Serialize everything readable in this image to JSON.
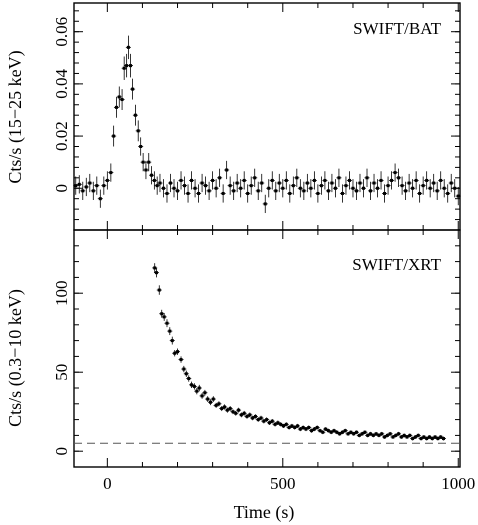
{
  "chart_data": {
    "type": "scatter",
    "xlabel": "Time (s)",
    "x_ticks": [
      "0",
      "500",
      "1000"
    ],
    "xlim": [
      -95,
      1005
    ],
    "panels": [
      {
        "panel_label": "SWIFT/BAT",
        "ylabel": "Cts/s (15−25 keV)",
        "ylim": [
          -0.016,
          0.071
        ],
        "y_ticks": [
          {
            "value": 0,
            "label": "0"
          },
          {
            "value": 0.02,
            "label": "0.02"
          },
          {
            "value": 0.04,
            "label": "0.04"
          },
          {
            "value": 0.06,
            "label": "0.06"
          }
        ],
        "points": [
          [
            -90,
            0.001,
            0.0035
          ],
          [
            -80,
            0.0015,
            0.0035
          ],
          [
            -70,
            -0.001,
            0.0035
          ],
          [
            -60,
            0.0005,
            0.0035
          ],
          [
            -50,
            0.002,
            0.0035
          ],
          [
            -40,
            -0.001,
            0.0035
          ],
          [
            -30,
            0.001,
            0.0035
          ],
          [
            -20,
            -0.004,
            0.0035
          ],
          [
            -10,
            0.001,
            0.0035
          ],
          [
            0,
            0.003,
            0.0035
          ],
          [
            10,
            0.006,
            0.0035
          ],
          [
            18,
            0.02,
            0.004
          ],
          [
            26,
            0.031,
            0.004
          ],
          [
            34,
            0.035,
            0.004
          ],
          [
            42,
            0.034,
            0.004
          ],
          [
            48,
            0.046,
            0.0045
          ],
          [
            55,
            0.047,
            0.0045
          ],
          [
            60,
            0.054,
            0.0045
          ],
          [
            66,
            0.047,
            0.0045
          ],
          [
            72,
            0.038,
            0.004
          ],
          [
            80,
            0.028,
            0.004
          ],
          [
            88,
            0.022,
            0.004
          ],
          [
            95,
            0.016,
            0.0035
          ],
          [
            102,
            0.01,
            0.0035
          ],
          [
            110,
            0.007,
            0.0035
          ],
          [
            118,
            0.01,
            0.0035
          ],
          [
            126,
            0.005,
            0.0035
          ],
          [
            134,
            0.003,
            0.0035
          ],
          [
            142,
            0.001,
            0.0035
          ],
          [
            150,
            0.002,
            0.0035
          ],
          [
            160,
            0.0,
            0.0035
          ],
          [
            170,
            -0.002,
            0.0035
          ],
          [
            180,
            0.002,
            0.0035
          ],
          [
            190,
            0.0,
            0.0035
          ],
          [
            200,
            -0.001,
            0.0035
          ],
          [
            210,
            0.003,
            0.0035
          ],
          [
            220,
            0.001,
            0.0035
          ],
          [
            230,
            -0.002,
            0.0035
          ],
          [
            240,
            0.003,
            0.0035
          ],
          [
            250,
            0.0,
            0.0035
          ],
          [
            260,
            -0.002,
            0.0035
          ],
          [
            270,
            0.002,
            0.0035
          ],
          [
            280,
            0.001,
            0.0035
          ],
          [
            290,
            -0.001,
            0.0035
          ],
          [
            300,
            0.003,
            0.0035
          ],
          [
            310,
            0.0,
            0.0035
          ],
          [
            320,
            0.004,
            0.0035
          ],
          [
            330,
            -0.002,
            0.0035
          ],
          [
            340,
            0.007,
            0.0035
          ],
          [
            350,
            0.001,
            0.0035
          ],
          [
            360,
            -0.001,
            0.0035
          ],
          [
            370,
            0.002,
            0.0035
          ],
          [
            380,
            0.0,
            0.0035
          ],
          [
            390,
            0.003,
            0.0035
          ],
          [
            400,
            -0.002,
            0.0035
          ],
          [
            410,
            0.001,
            0.0035
          ],
          [
            420,
            0.004,
            0.0035
          ],
          [
            430,
            -0.001,
            0.0035
          ],
          [
            440,
            0.002,
            0.0035
          ],
          [
            450,
            -0.006,
            0.0035
          ],
          [
            460,
            0.0,
            0.0035
          ],
          [
            470,
            0.003,
            0.0035
          ],
          [
            480,
            -0.001,
            0.0035
          ],
          [
            490,
            0.002,
            0.0035
          ],
          [
            500,
            0.0,
            0.0035
          ],
          [
            510,
            0.003,
            0.0035
          ],
          [
            520,
            -0.002,
            0.0035
          ],
          [
            530,
            0.001,
            0.0035
          ],
          [
            540,
            0.004,
            0.0035
          ],
          [
            550,
            0.0,
            0.0035
          ],
          [
            560,
            -0.001,
            0.0035
          ],
          [
            570,
            0.002,
            0.0035
          ],
          [
            580,
            0.0,
            0.0035
          ],
          [
            590,
            0.003,
            0.0035
          ],
          [
            600,
            -0.002,
            0.0035
          ],
          [
            610,
            0.001,
            0.0035
          ],
          [
            620,
            0.003,
            0.0035
          ],
          [
            630,
            -0.001,
            0.0035
          ],
          [
            640,
            0.002,
            0.0035
          ],
          [
            650,
            0.0,
            0.0035
          ],
          [
            660,
            0.004,
            0.0035
          ],
          [
            670,
            -0.002,
            0.0035
          ],
          [
            680,
            0.001,
            0.0035
          ],
          [
            690,
            0.003,
            0.0035
          ],
          [
            700,
            0.0,
            0.0035
          ],
          [
            710,
            -0.001,
            0.0035
          ],
          [
            720,
            0.002,
            0.0035
          ],
          [
            730,
            0.0,
            0.0035
          ],
          [
            740,
            0.004,
            0.0035
          ],
          [
            750,
            -0.001,
            0.0035
          ],
          [
            760,
            0.002,
            0.0035
          ],
          [
            770,
            0.0,
            0.0035
          ],
          [
            780,
            0.003,
            0.0035
          ],
          [
            790,
            -0.002,
            0.0035
          ],
          [
            800,
            0.001,
            0.0035
          ],
          [
            810,
            0.003,
            0.0035
          ],
          [
            820,
            0.006,
            0.0035
          ],
          [
            830,
            0.004,
            0.0035
          ],
          [
            840,
            0.001,
            0.0035
          ],
          [
            850,
            -0.001,
            0.0035
          ],
          [
            860,
            0.002,
            0.0035
          ],
          [
            870,
            0.0,
            0.0035
          ],
          [
            880,
            0.003,
            0.0035
          ],
          [
            890,
            -0.002,
            0.0035
          ],
          [
            900,
            0.001,
            0.0035
          ],
          [
            910,
            0.003,
            0.0035
          ],
          [
            920,
            0.0,
            0.0035
          ],
          [
            930,
            0.002,
            0.0035
          ],
          [
            940,
            -0.001,
            0.0035
          ],
          [
            950,
            0.003,
            0.0035
          ],
          [
            960,
            0.0,
            0.0035
          ],
          [
            970,
            -0.002,
            0.0035
          ],
          [
            980,
            0.002,
            0.0035
          ],
          [
            990,
            0.0,
            0.0035
          ],
          [
            1000,
            -0.003,
            0.0035
          ]
        ]
      },
      {
        "panel_label": "SWIFT/XRT",
        "ylabel": "Cts/s (0.3−10 keV)",
        "ylim": [
          -10,
          140
        ],
        "y_ticks": [
          {
            "value": 0,
            "label": "0"
          },
          {
            "value": 50,
            "label": "50"
          },
          {
            "value": 100,
            "label": "100"
          }
        ],
        "reference_line_y": 5,
        "points": [
          [
            135,
            116,
            3
          ],
          [
            140,
            113,
            3
          ],
          [
            148,
            102,
            3
          ],
          [
            155,
            87,
            2.5
          ],
          [
            162,
            85,
            2.5
          ],
          [
            170,
            81,
            2.5
          ],
          [
            178,
            76,
            2.5
          ],
          [
            185,
            70,
            2.5
          ],
          [
            192,
            62,
            2
          ],
          [
            200,
            63,
            2
          ],
          [
            210,
            58,
            2
          ],
          [
            218,
            52,
            2
          ],
          [
            225,
            49,
            2
          ],
          [
            232,
            46,
            2
          ],
          [
            240,
            42,
            2
          ],
          [
            248,
            41,
            2
          ],
          [
            255,
            38,
            2
          ],
          [
            262,
            40,
            2
          ],
          [
            270,
            35,
            1.8
          ],
          [
            278,
            37,
            1.8
          ],
          [
            286,
            33,
            1.8
          ],
          [
            294,
            31,
            1.8
          ],
          [
            302,
            33,
            1.8
          ],
          [
            310,
            29,
            1.6
          ],
          [
            318,
            30,
            1.6
          ],
          [
            326,
            27,
            1.6
          ],
          [
            334,
            28,
            1.6
          ],
          [
            342,
            26,
            1.6
          ],
          [
            350,
            27,
            1.6
          ],
          [
            358,
            25,
            1.5
          ],
          [
            366,
            24,
            1.5
          ],
          [
            374,
            26,
            1.5
          ],
          [
            382,
            23,
            1.5
          ],
          [
            390,
            24,
            1.5
          ],
          [
            398,
            22,
            1.5
          ],
          [
            406,
            23,
            1.5
          ],
          [
            414,
            21,
            1.4
          ],
          [
            422,
            22,
            1.4
          ],
          [
            430,
            20,
            1.4
          ],
          [
            438,
            21,
            1.4
          ],
          [
            446,
            19,
            1.4
          ],
          [
            454,
            20,
            1.4
          ],
          [
            462,
            18,
            1.4
          ],
          [
            470,
            19,
            1.4
          ],
          [
            478,
            17,
            1.4
          ],
          [
            486,
            18,
            1.4
          ],
          [
            494,
            17,
            1.3
          ],
          [
            502,
            16,
            1.3
          ],
          [
            510,
            17,
            1.3
          ],
          [
            518,
            15,
            1.3
          ],
          [
            526,
            16,
            1.3
          ],
          [
            534,
            15,
            1.3
          ],
          [
            542,
            16,
            1.3
          ],
          [
            550,
            14,
            1.3
          ],
          [
            558,
            15,
            1.3
          ],
          [
            566,
            14,
            1.3
          ],
          [
            574,
            15,
            1.3
          ],
          [
            582,
            13,
            1.3
          ],
          [
            590,
            14,
            1.3
          ],
          [
            598,
            15,
            1.3
          ],
          [
            606,
            13,
            1.2
          ],
          [
            614,
            12,
            1.2
          ],
          [
            622,
            14,
            1.2
          ],
          [
            630,
            13,
            1.2
          ],
          [
            638,
            12,
            1.2
          ],
          [
            646,
            13,
            1.2
          ],
          [
            654,
            12,
            1.2
          ],
          [
            662,
            11,
            1.2
          ],
          [
            670,
            12,
            1.2
          ],
          [
            678,
            13,
            1.2
          ],
          [
            686,
            11,
            1.2
          ],
          [
            694,
            12,
            1.2
          ],
          [
            702,
            11,
            1.2
          ],
          [
            710,
            12,
            1.2
          ],
          [
            718,
            10,
            1.2
          ],
          [
            726,
            11,
            1.2
          ],
          [
            734,
            12,
            1.2
          ],
          [
            742,
            10,
            1.2
          ],
          [
            750,
            11,
            1.2
          ],
          [
            758,
            10,
            1.2
          ],
          [
            766,
            11,
            1.2
          ],
          [
            774,
            10,
            1.2
          ],
          [
            782,
            11,
            1.2
          ],
          [
            790,
            9,
            1.2
          ],
          [
            798,
            10,
            1.2
          ],
          [
            806,
            11,
            1.2
          ],
          [
            814,
            9,
            1.2
          ],
          [
            822,
            10,
            1.2
          ],
          [
            830,
            11,
            1.2
          ],
          [
            838,
            9,
            1.2
          ],
          [
            846,
            10,
            1.2
          ],
          [
            854,
            9,
            1.2
          ],
          [
            862,
            10,
            1.2
          ],
          [
            870,
            8,
            1.2
          ],
          [
            878,
            9,
            1.2
          ],
          [
            886,
            10,
            1.2
          ],
          [
            894,
            8,
            1.2
          ],
          [
            902,
            9,
            1.2
          ],
          [
            910,
            8,
            1.2
          ],
          [
            918,
            9,
            1.2
          ],
          [
            926,
            8,
            1.2
          ],
          [
            934,
            9,
            1.2
          ],
          [
            942,
            8,
            1.2
          ],
          [
            950,
            9,
            1.2
          ],
          [
            958,
            8,
            1.2
          ]
        ]
      }
    ]
  }
}
